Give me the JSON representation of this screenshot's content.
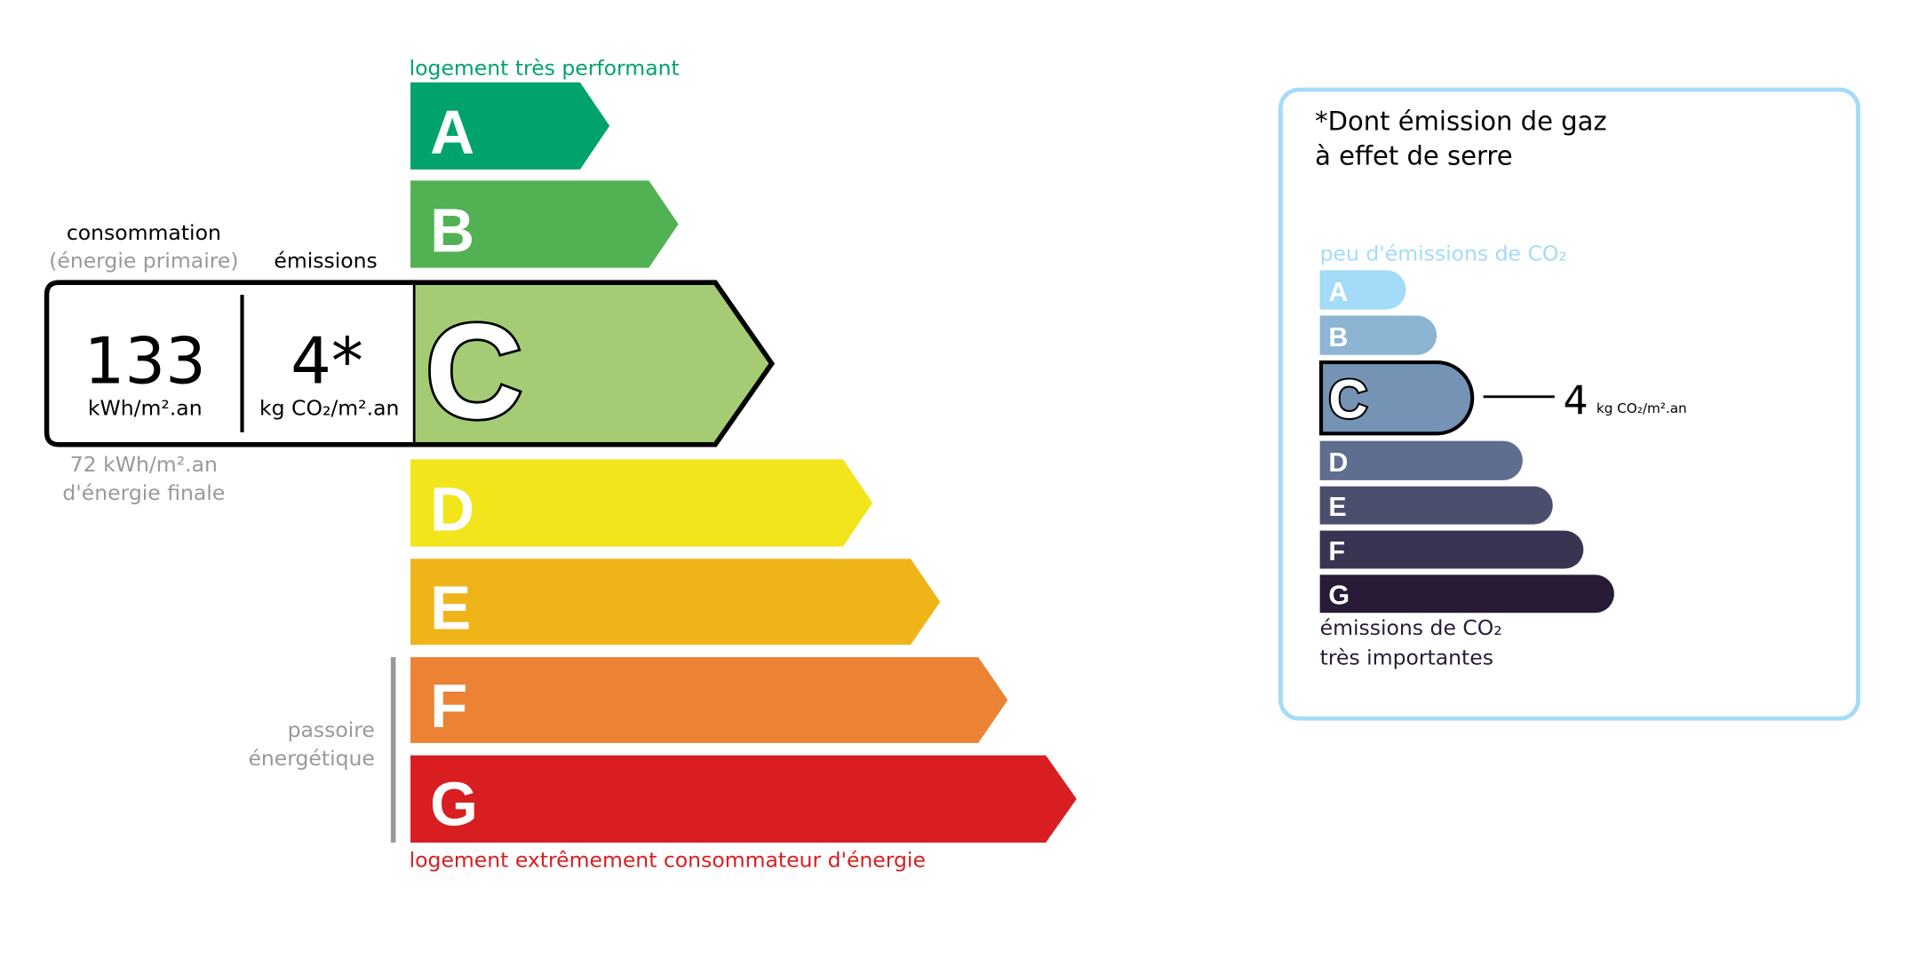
{
  "energy": {
    "top_label": "logement très performant",
    "bottom_label": "logement extrêmement consommateur d'énergie",
    "classes": [
      {
        "letter": "A",
        "color": "#00a36c"
      },
      {
        "letter": "B",
        "color": "#52b153"
      },
      {
        "letter": "C",
        "color": "#a5cc74"
      },
      {
        "letter": "D",
        "color": "#f2e51c"
      },
      {
        "letter": "E",
        "color": "#efb418"
      },
      {
        "letter": "F",
        "color": "#eb8234"
      },
      {
        "letter": "G",
        "color": "#d81e20"
      }
    ],
    "current_class": "C",
    "consumption_heading": "consommation",
    "consumption_subheading": "(énergie primaire)",
    "emissions_heading": "émissions",
    "consumption_value": "133",
    "consumption_unit": "kWh/m².an",
    "emissions_value": "4*",
    "emissions_unit": "kg CO₂/m².an",
    "final_energy_value": "72 kWh/m².an",
    "final_energy_label": "d'énergie finale",
    "passoire_line1": "passoire",
    "passoire_line2": "énergétique"
  },
  "ges": {
    "title_line1": "*Dont émission de gaz",
    "title_line2": "à effet de serre",
    "top_label": "peu d'émissions de CO₂",
    "bottom_label_line1": "émissions de CO₂",
    "bottom_label_line2": "très importantes",
    "classes": [
      {
        "letter": "A",
        "color": "#a4dbf8"
      },
      {
        "letter": "B",
        "color": "#8cb4d3"
      },
      {
        "letter": "C",
        "color": "#7593b5"
      },
      {
        "letter": "D",
        "color": "#5f6d8f"
      },
      {
        "letter": "E",
        "color": "#4b4f6e"
      },
      {
        "letter": "F",
        "color": "#383552"
      },
      {
        "letter": "G",
        "color": "#281b36"
      }
    ],
    "current_class": "C",
    "value": "4",
    "unit": "kg CO₂/m².an",
    "border_color": "#a4dbf8"
  }
}
